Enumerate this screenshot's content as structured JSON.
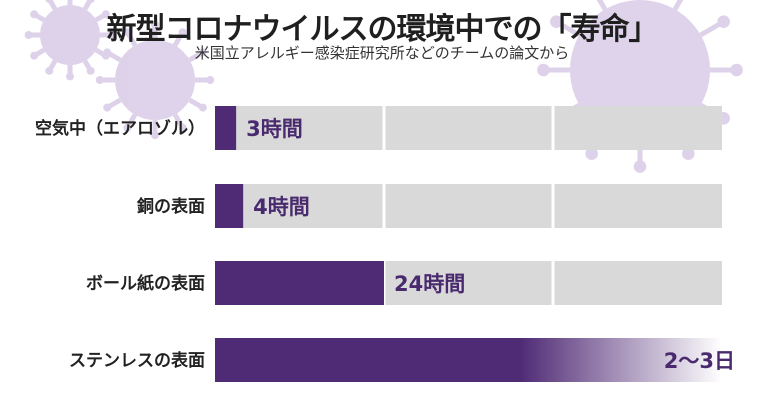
{
  "title": "新型コロナウイルスの環境中での「寿命」",
  "subtitle": "米国立アレルギー感染症研究所などのチームの論文から",
  "colors": {
    "bar": "#4f2a75",
    "track": "#d9d9d9",
    "grid": "#ffffff",
    "virus": "#c9b5dc"
  },
  "chart_data": {
    "type": "bar",
    "orientation": "horizontal",
    "unit": "hours",
    "categories": [
      "空気中（エアロゾル）",
      "銅の表面",
      "ボール紙の表面",
      "ステンレスの表面"
    ],
    "values": [
      3,
      4,
      24,
      72
    ],
    "value_labels": [
      "3時間",
      "4時間",
      "24時間",
      "2〜3日"
    ],
    "xlim": [
      0,
      72
    ],
    "grid": true,
    "legend": "none"
  }
}
